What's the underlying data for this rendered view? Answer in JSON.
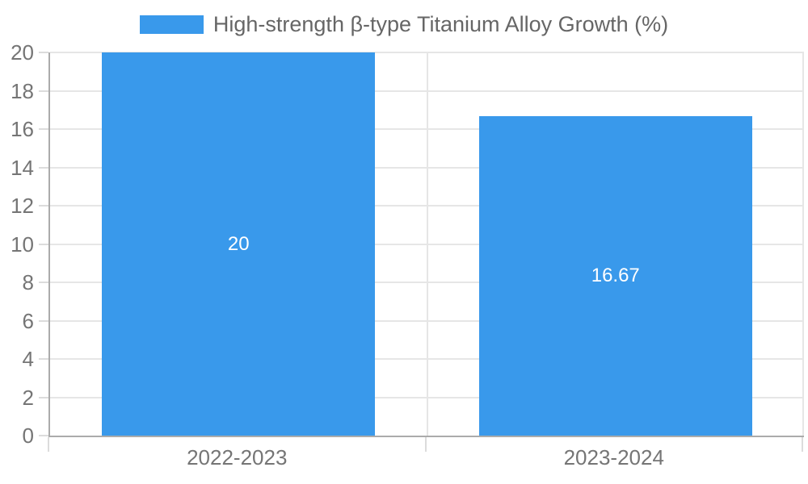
{
  "chart_data": {
    "type": "bar",
    "title": "",
    "legend": "High-strength β-type Titanium Alloy Growth (%)",
    "legend_position": "top",
    "categories": [
      "2022-2023",
      "2023-2024"
    ],
    "values": [
      20,
      16.67
    ],
    "value_labels": [
      "20",
      "16.67"
    ],
    "ylim": [
      0,
      20
    ],
    "ytick_step": 2,
    "grid": true,
    "xlabel": "",
    "ylabel": ""
  },
  "colors": {
    "bar": "#3999eb",
    "bar_label": "#ffffff",
    "grid": "#e6e6e6",
    "axis": "#ababab",
    "tick": "#dcdcdc",
    "tick_text": "#757575",
    "legend_text": "#666666",
    "background": "#ffffff"
  }
}
